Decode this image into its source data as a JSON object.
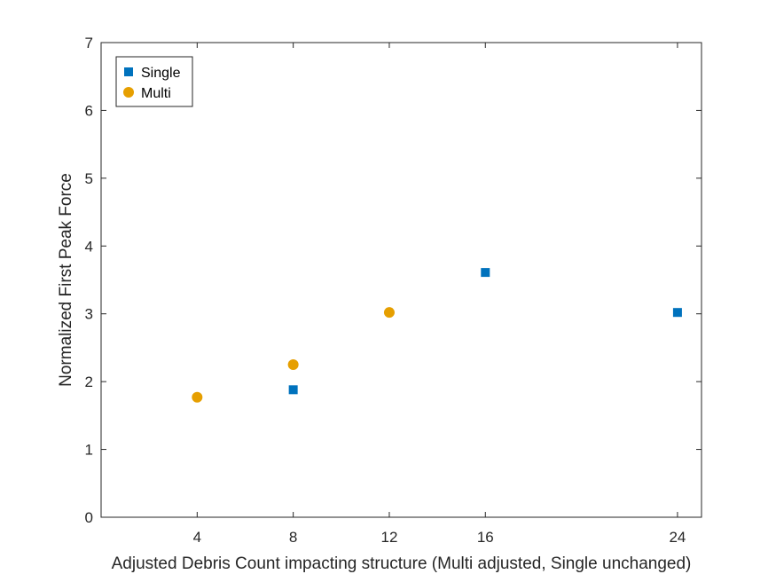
{
  "chart_data": {
    "type": "scatter",
    "title": "",
    "xlabel": "Adjusted Debris Count impacting structure (Multi adjusted, Single unchanged)",
    "ylabel": "Normalized First Peak Force",
    "xlim": [
      0,
      25
    ],
    "ylim": [
      0,
      7
    ],
    "xticks": [
      4,
      8,
      12,
      16,
      24
    ],
    "yticks": [
      0,
      1,
      2,
      3,
      4,
      5,
      6,
      7
    ],
    "grid": false,
    "legend_position": "top-left",
    "series": [
      {
        "name": "Single",
        "marker": "square",
        "color": "#0072bd",
        "x": [
          8,
          16,
          24
        ],
        "y": [
          1.88,
          3.61,
          3.02
        ]
      },
      {
        "name": "Multi",
        "marker": "circle",
        "color": "#e69f00",
        "x": [
          4,
          8,
          12
        ],
        "y": [
          1.77,
          2.25,
          3.02
        ]
      }
    ]
  }
}
